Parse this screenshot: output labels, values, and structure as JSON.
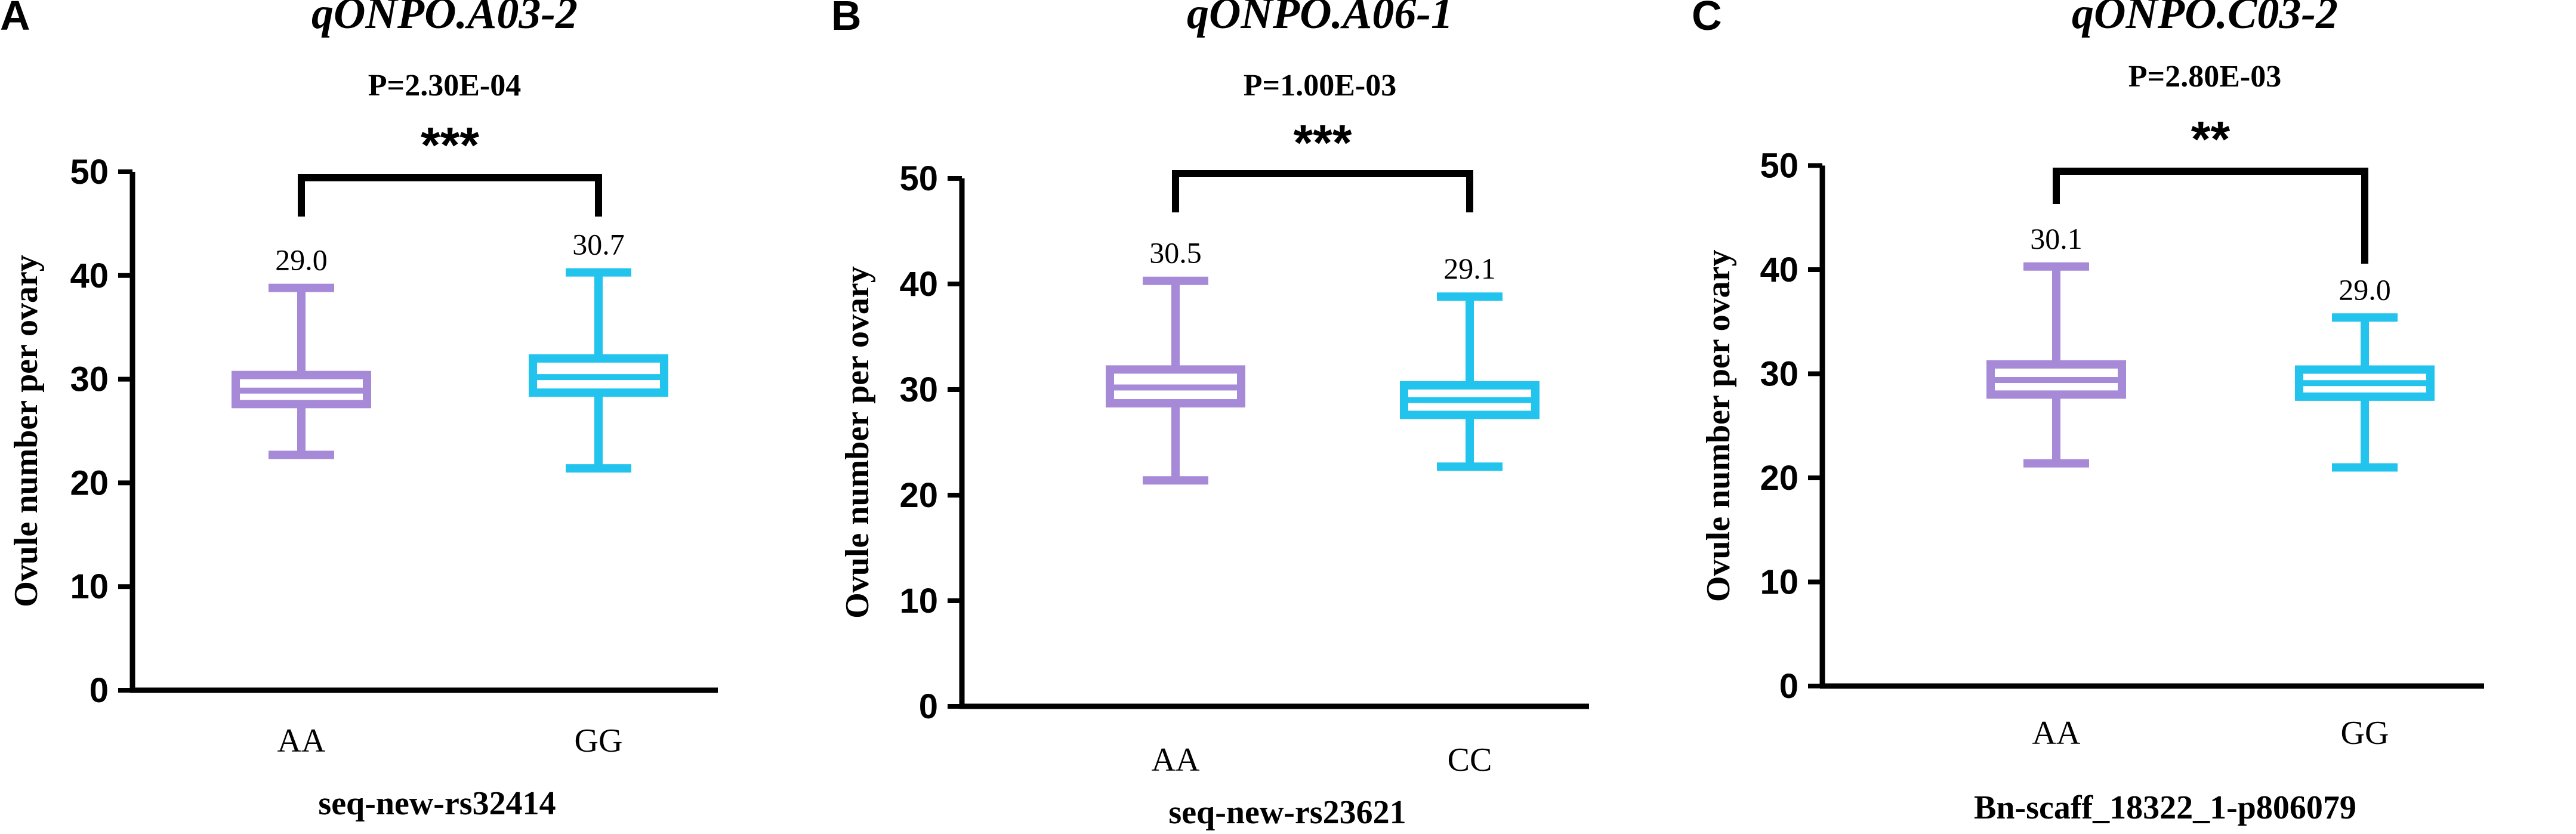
{
  "chart_data": [
    {
      "type": "box",
      "panel": "A",
      "title": "qONPO.A03-2",
      "pvalue": "P=2.30E-04",
      "significance": "***",
      "xlabel": "seq-new-rs32414",
      "ylabel": "Ovule number per ovary",
      "ylim": [
        0,
        50
      ],
      "yticks": [
        "0",
        "10",
        "20",
        "30",
        "40",
        "50"
      ],
      "categories": [
        "AA",
        "GG"
      ],
      "colors": [
        "#a68ad8",
        "#22c4ee"
      ],
      "boxes": [
        {
          "min": 22.7,
          "q1": 27.6,
          "median": 28.9,
          "q3": 30.4,
          "max": 38.8
        },
        {
          "min": 21.4,
          "q1": 28.7,
          "median": 30.2,
          "q3": 32.0,
          "max": 40.3
        }
      ],
      "mean_labels": [
        "29.0",
        "30.7"
      ],
      "grid": false
    },
    {
      "type": "box",
      "panel": "B",
      "title": "qONPO.A06-1",
      "pvalue": "P=1.00E-03",
      "significance": "***",
      "xlabel": "seq-new-rs23621",
      "ylabel": "Ovule number per ovary",
      "ylim": [
        0,
        50
      ],
      "yticks": [
        "0",
        "10",
        "20",
        "30",
        "40",
        "50"
      ],
      "categories": [
        "AA",
        "CC"
      ],
      "colors": [
        "#a68ad8",
        "#22c4ee"
      ],
      "boxes": [
        {
          "min": 21.4,
          "q1": 28.7,
          "median": 30.2,
          "q3": 31.9,
          "max": 40.3
        },
        {
          "min": 22.7,
          "q1": 27.6,
          "median": 29.0,
          "q3": 30.4,
          "max": 38.8
        }
      ],
      "mean_labels": [
        "30.5",
        "29.1"
      ],
      "grid": false
    },
    {
      "type": "box",
      "panel": "C",
      "title": "qONPO.C03-2",
      "pvalue": "P=2.80E-03",
      "significance": "**",
      "xlabel": "Bn-scaff_18322_1-p806079",
      "ylabel": "Ovule number per ovary",
      "ylim": [
        0,
        50
      ],
      "yticks": [
        "0",
        "10",
        "20",
        "30",
        "40",
        "50"
      ],
      "categories": [
        "AA",
        "GG"
      ],
      "colors": [
        "#a68ad8",
        "#22c4ee"
      ],
      "boxes": [
        {
          "min": 21.4,
          "q1": 28.0,
          "median": 29.4,
          "q3": 30.9,
          "max": 40.3
        },
        {
          "min": 21.0,
          "q1": 27.8,
          "median": 29.1,
          "q3": 30.4,
          "max": 35.4
        }
      ],
      "mean_labels": [
        "30.1",
        "29.0"
      ],
      "grid": false
    }
  ]
}
